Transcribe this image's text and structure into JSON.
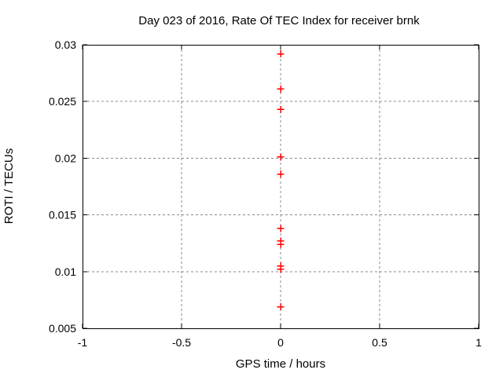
{
  "colors": {
    "background": "#ffffff",
    "border": "#000000",
    "grid": "#888888",
    "marker": "#ff0000",
    "text": "#000000"
  },
  "chart_data": {
    "type": "scatter",
    "title": "Day 023 of 2016, Rate Of TEC Index for receiver brnk",
    "xlabel": "GPS time / hours",
    "ylabel": "ROTI / TECUs",
    "xlim": [
      -1,
      1
    ],
    "ylim": [
      0.005,
      0.03
    ],
    "grid": true,
    "legend": "none",
    "marker": "plus",
    "marker_size": 9,
    "xticks": [
      {
        "v": -1,
        "label": "-1"
      },
      {
        "v": -0.5,
        "label": "-0.5"
      },
      {
        "v": 0,
        "label": "0"
      },
      {
        "v": 0.5,
        "label": "0.5"
      },
      {
        "v": 1,
        "label": "1"
      }
    ],
    "yticks": [
      {
        "v": 0.005,
        "label": "0.005"
      },
      {
        "v": 0.01,
        "label": "0.01"
      },
      {
        "v": 0.015,
        "label": "0.015"
      },
      {
        "v": 0.02,
        "label": "0.02"
      },
      {
        "v": 0.025,
        "label": "0.025"
      },
      {
        "v": 0.03,
        "label": "0.03"
      }
    ],
    "points": [
      {
        "x": 0,
        "y": 0.0292
      },
      {
        "x": 0,
        "y": 0.0261
      },
      {
        "x": 0,
        "y": 0.0243
      },
      {
        "x": 0,
        "y": 0.0201
      },
      {
        "x": 0,
        "y": 0.0186
      },
      {
        "x": 0,
        "y": 0.0138
      },
      {
        "x": 0,
        "y": 0.0127
      },
      {
        "x": 0,
        "y": 0.0124
      },
      {
        "x": 0,
        "y": 0.0105
      },
      {
        "x": 0,
        "y": 0.0102
      },
      {
        "x": 0,
        "y": 0.0069
      }
    ]
  }
}
